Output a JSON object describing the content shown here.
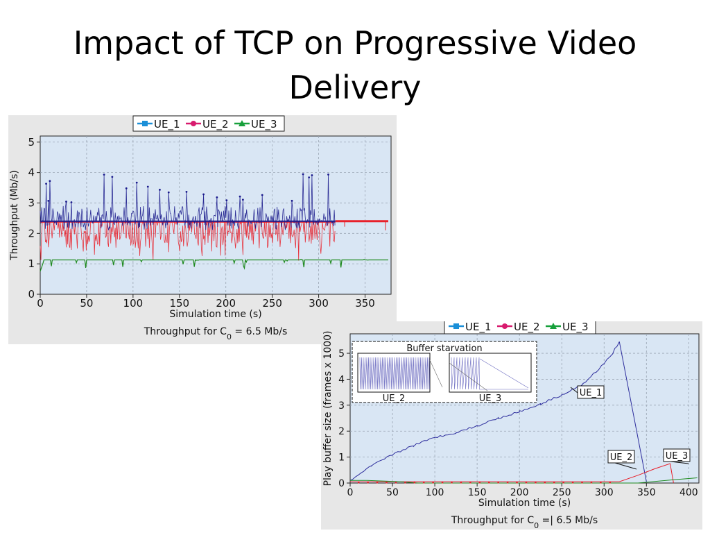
{
  "slide": {
    "title_line1": "Impact of TCP on Progressive Video",
    "title_line2": "Delivery"
  },
  "chart_data": [
    {
      "type": "line",
      "legend": [
        "UE_1",
        "UE_2",
        "UE_3"
      ],
      "legend_placement": "top-center",
      "colors": {
        "UE_1": "#1a1a8c",
        "UE_2": "#e8202a",
        "UE_3": "#1e8a1e"
      },
      "legend_colors": {
        "UE_1": "#1a8fd8",
        "UE_2": "#d81a6e",
        "UE_3": "#17a03b"
      },
      "xlabel": "Simulation time (s)",
      "ylabel": "Throughput (Mb/s)",
      "caption_prefix": "Throughput for C",
      "caption_sub": "0",
      "caption_suffix": " = 6.5 Mb/s",
      "xlim": [
        0,
        378
      ],
      "ylim": [
        0,
        5.2
      ],
      "xticks": [
        "0",
        "50",
        "100",
        "150",
        "200",
        "250",
        "300",
        "350"
      ],
      "yticks": [
        "0",
        "1",
        "2",
        "3",
        "4",
        "5"
      ],
      "grid": true,
      "series": [
        {
          "name": "UE_1",
          "x_range": [
            0,
            318
          ],
          "baseline": 2.4,
          "band": [
            2.1,
            2.9
          ],
          "peak_max": 3.95
        },
        {
          "name": "UE_2",
          "x_range": [
            0,
            318
          ],
          "baseline": 2.4,
          "band": [
            1.5,
            2.4
          ],
          "dip_min": 1.1,
          "x": [
            318,
            375
          ],
          "y": [
            2.4,
            2.4
          ]
        },
        {
          "name": "UE_3",
          "x_range": [
            0,
            375
          ],
          "baseline": 1.13,
          "dip_min": 0.75
        }
      ]
    },
    {
      "type": "line",
      "legend": [
        "UE_1",
        "UE_2",
        "UE_3"
      ],
      "legend_placement": "top-center",
      "xlabel": "Simulation time (s)",
      "ylabel": "Play buffer size (frames x 1000)",
      "caption_prefix": "Throughput for C",
      "caption_sub": "0",
      "caption_suffix": " =| 6.5 Mb/s",
      "xlim": [
        0,
        412
      ],
      "ylim": [
        0,
        5.75
      ],
      "xticks": [
        "0",
        "50",
        "100",
        "150",
        "200",
        "250",
        "300",
        "350",
        "400"
      ],
      "yticks": [
        "0",
        "1",
        "2",
        "3",
        "4",
        "5"
      ],
      "grid": true,
      "inset_title": "Buffer starvation",
      "inset_labels": [
        "UE_2",
        "UE_3"
      ],
      "annotations": [
        "UE_1",
        "UE_2",
        "UE_3"
      ],
      "series": [
        {
          "name": "UE_1",
          "x": [
            0,
            10,
            25,
            50,
            75,
            100,
            125,
            150,
            175,
            200,
            225,
            250,
            275,
            300,
            310,
            318,
            350
          ],
          "y": [
            0.1,
            0.3,
            0.65,
            1.1,
            1.45,
            1.75,
            1.95,
            2.2,
            2.5,
            2.75,
            3.05,
            3.4,
            3.8,
            4.6,
            5.0,
            5.45,
            0.05
          ]
        },
        {
          "name": "UE_2",
          "x": [
            0,
            60,
            318,
            340,
            360,
            378,
            382
          ],
          "y": [
            0.05,
            0.05,
            0.05,
            0.3,
            0.55,
            0.75,
            0.0
          ]
        },
        {
          "name": "UE_3",
          "x": [
            0,
            20,
            60,
            80,
            340,
            380,
            410
          ],
          "y": [
            0.1,
            0.1,
            0.05,
            0.0,
            0.0,
            0.12,
            0.2
          ]
        }
      ]
    }
  ]
}
